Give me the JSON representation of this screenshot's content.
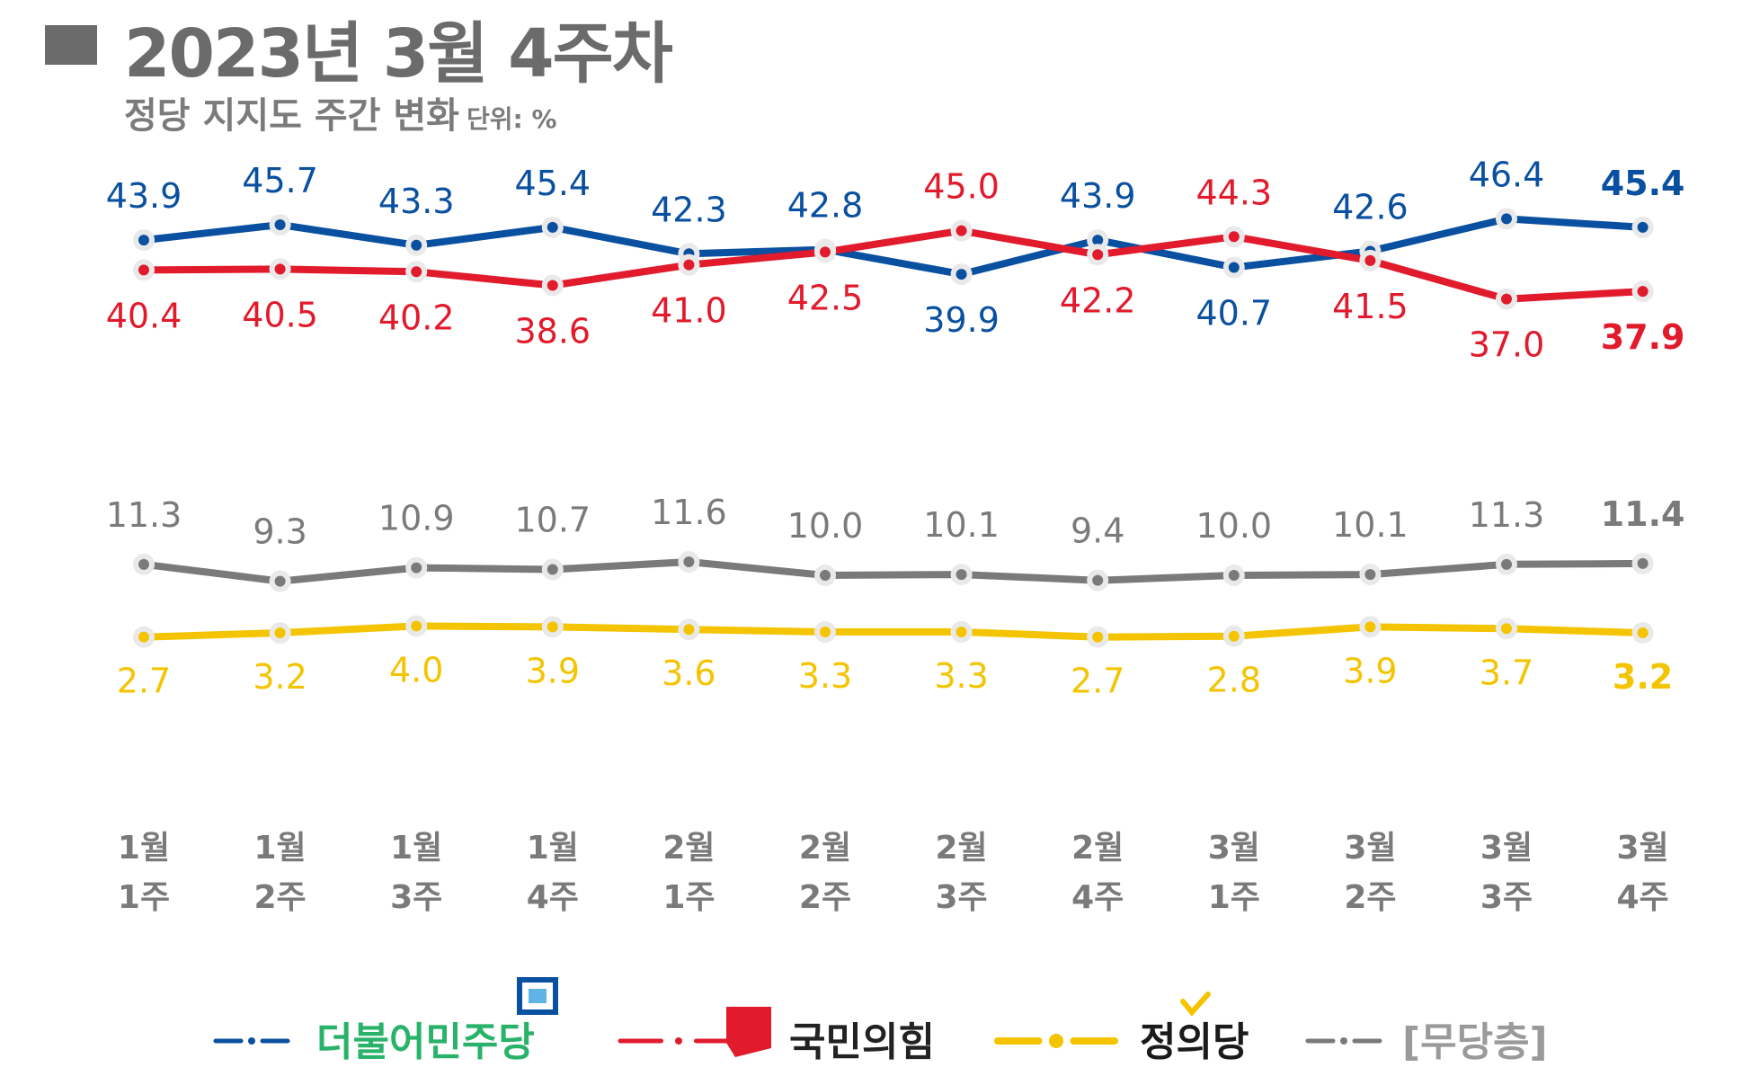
{
  "header": {
    "title": "2023년 3월 4주차",
    "subtitle": "정당 지지도 주간 변화",
    "unit": "단위: %"
  },
  "colors": {
    "democratic": "#0a50a0",
    "ppp": "#e11a2c",
    "justice": "#f4c400",
    "independent": "#7a7a7a"
  },
  "chart_data": {
    "type": "line",
    "title": "2023년 3월 4주차 정당 지지도 주간 변화",
    "ylabel": "단위: %",
    "categories": [
      [
        "1월",
        "1주"
      ],
      [
        "1월",
        "2주"
      ],
      [
        "1월",
        "3주"
      ],
      [
        "1월",
        "4주"
      ],
      [
        "2월",
        "1주"
      ],
      [
        "2월",
        "2주"
      ],
      [
        "2월",
        "3주"
      ],
      [
        "2월",
        "4주"
      ],
      [
        "3월",
        "1주"
      ],
      [
        "3월",
        "2주"
      ],
      [
        "3월",
        "3주"
      ],
      [
        "3월",
        "4주"
      ]
    ],
    "series": [
      {
        "name": "더불어민주당",
        "key": "democratic",
        "values": [
          43.9,
          45.7,
          43.3,
          45.4,
          42.3,
          42.8,
          39.9,
          43.9,
          40.7,
          42.6,
          46.4,
          45.4
        ]
      },
      {
        "name": "국민의힘",
        "key": "ppp",
        "values": [
          40.4,
          40.5,
          40.2,
          38.6,
          41.0,
          42.5,
          45.0,
          42.2,
          44.3,
          41.5,
          37.0,
          37.9
        ]
      },
      {
        "name": "[무당층]",
        "key": "independent",
        "values": [
          11.3,
          9.3,
          10.9,
          10.7,
          11.6,
          10.0,
          10.1,
          9.4,
          10.0,
          10.1,
          11.3,
          11.4
        ]
      },
      {
        "name": "정의당",
        "key": "justice",
        "values": [
          2.7,
          3.2,
          4.0,
          3.9,
          3.6,
          3.3,
          3.3,
          2.7,
          2.8,
          3.9,
          3.7,
          3.2
        ]
      }
    ],
    "value_labels": {
      "democratic": [
        "43.9",
        "45.7",
        "43.3",
        "45.4",
        "42.3",
        "42.8",
        "39.9",
        "43.9",
        "40.7",
        "42.6",
        "46.4",
        "45.4"
      ],
      "ppp": [
        "40.4",
        "40.5",
        "40.2",
        "38.6",
        "41.0",
        "42.5",
        "45.0",
        "42.2",
        "44.3",
        "41.5",
        "37.0",
        "37.9"
      ],
      "independent": [
        "11.3",
        "9.3",
        "10.9",
        "10.7",
        "11.6",
        "10.0",
        "10.1",
        "9.4",
        "10.0",
        "10.1",
        "11.3",
        "11.4"
      ],
      "justice": [
        "2.7",
        "3.2",
        "4.0",
        "3.9",
        "3.6",
        "3.3",
        "3.3",
        "2.7",
        "2.8",
        "3.9",
        "3.7",
        "3.2"
      ]
    },
    "legend": [
      "더불어민주당",
      "국민의힘",
      "정의당",
      "[무당층]"
    ],
    "legend_position": "bottom",
    "grid": false
  }
}
